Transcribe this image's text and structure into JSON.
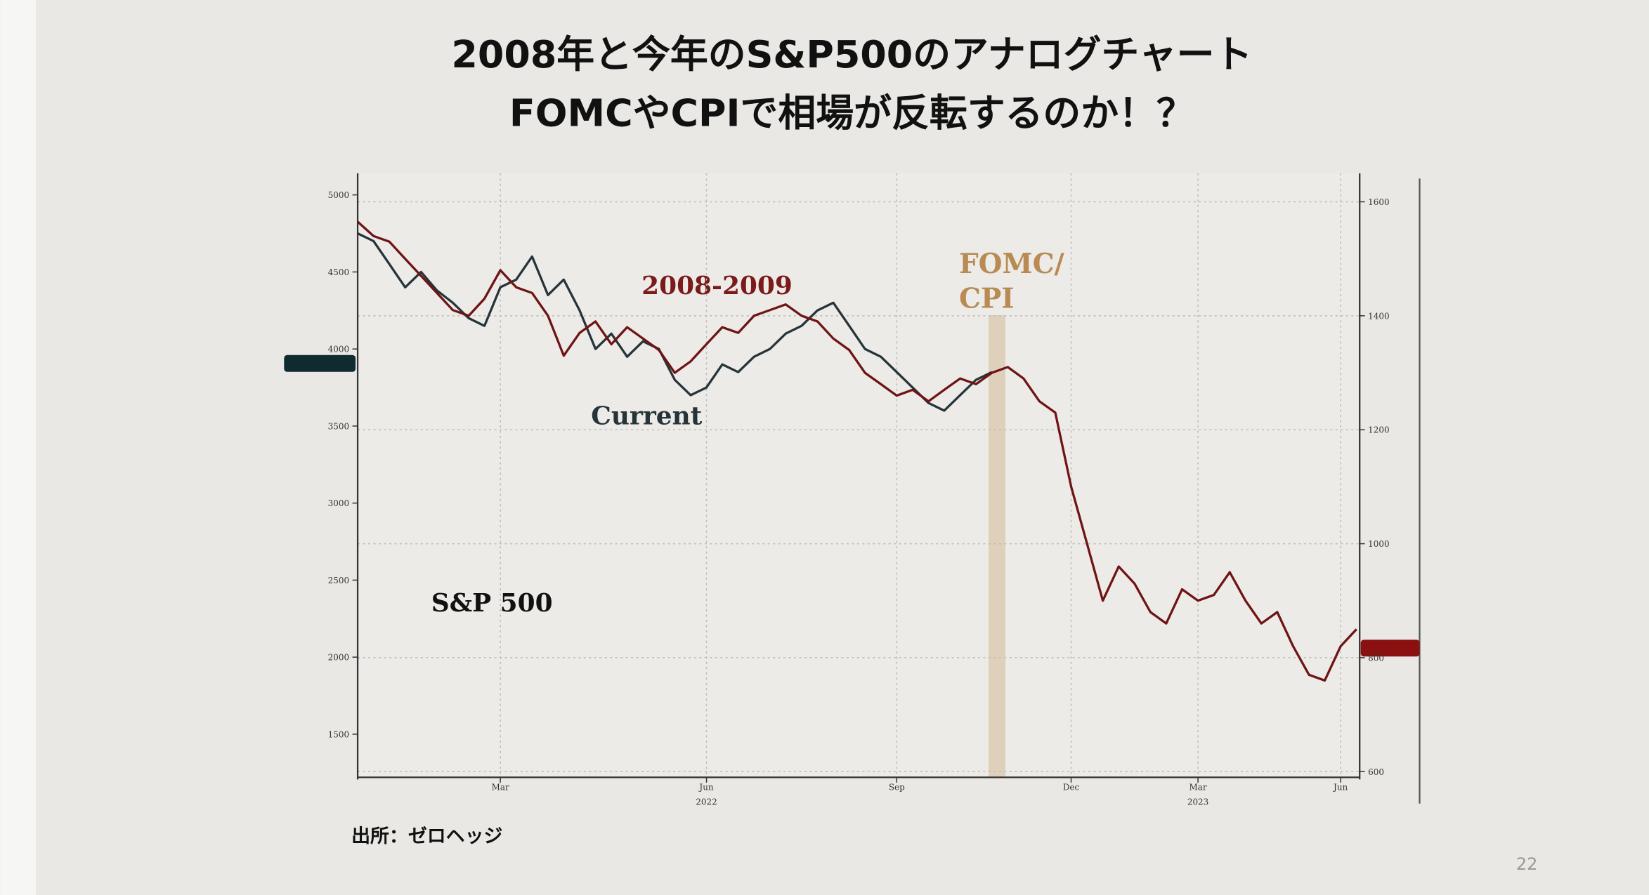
{
  "title_lines": [
    "2008年と今年のS&P500のアナログチャート",
    "FOMCやCPIで相場が反転するのか！？"
  ],
  "chart_data": {
    "type": "line",
    "annotations": [
      "2008-2009",
      "Current",
      "S&P 500",
      "FOMC/",
      "CPI"
    ],
    "categories": [
      null,
      null,
      null,
      null,
      null,
      null,
      null,
      null,
      null,
      "Mar",
      null,
      null,
      null,
      null,
      null,
      null,
      null,
      null,
      null,
      null,
      null,
      null,
      "Jun",
      null,
      null,
      null,
      null,
      null,
      null,
      null,
      null,
      null,
      null,
      null,
      "Sep",
      null,
      null,
      null,
      null,
      null,
      null,
      null,
      null,
      null,
      null,
      "Dec",
      null,
      null,
      null,
      null,
      null,
      null,
      null,
      "Mar",
      null,
      null,
      null,
      null,
      null,
      null,
      null,
      null,
      "Jun",
      null
    ],
    "category_years": [
      null,
      null,
      null,
      null,
      null,
      null,
      null,
      null,
      null,
      null,
      null,
      null,
      null,
      null,
      null,
      null,
      null,
      null,
      null,
      null,
      null,
      null,
      "2022",
      null,
      null,
      null,
      null,
      null,
      null,
      null,
      null,
      null,
      null,
      null,
      null,
      null,
      null,
      null,
      null,
      null,
      null,
      null,
      null,
      null,
      null,
      null,
      null,
      null,
      null,
      null,
      null,
      null,
      null,
      "2023",
      null,
      null,
      null,
      null,
      null,
      null,
      null,
      null,
      null,
      null
    ],
    "series": [
      {
        "name": "Current",
        "color": "#26343a",
        "values": [
          4750,
          4700,
          4550,
          4400,
          4500,
          4380,
          4300,
          4200,
          4150,
          4400,
          4450,
          4600,
          4350,
          4450,
          4250,
          4000,
          4100,
          3950,
          4050,
          4000,
          3800,
          3700,
          3750,
          3900,
          3850,
          3950,
          4000,
          4100,
          4150,
          4250,
          4300,
          4150,
          4000,
          3950,
          3850,
          3750,
          3650,
          3600,
          3700,
          3800,
          3850,
          null,
          null,
          null,
          null,
          null,
          null,
          null,
          null,
          null,
          null,
          null,
          null,
          null,
          null,
          null,
          null,
          null,
          null,
          null,
          null,
          null,
          null,
          null
        ]
      },
      {
        "name": "2008-2009",
        "color": "#6e1414",
        "axis": "y2",
        "values": [
          1565,
          1540,
          1530,
          1500,
          1470,
          1440,
          1410,
          1400,
          1430,
          1480,
          1450,
          1440,
          1400,
          1330,
          1370,
          1390,
          1350,
          1380,
          1360,
          1340,
          1300,
          1320,
          1350,
          1380,
          1370,
          1400,
          1410,
          1420,
          1400,
          1390,
          1360,
          1340,
          1300,
          1280,
          1260,
          1270,
          1250,
          1270,
          1290,
          1280,
          1300,
          1310,
          1290,
          1250,
          1230,
          1100,
          1000,
          900,
          960,
          930,
          880,
          860,
          920,
          900,
          910,
          950,
          900,
          860,
          880,
          820,
          770,
          760,
          820,
          850
        ]
      }
    ],
    "ylim": [
      1220,
      5140
    ],
    "yticks": [
      1500,
      2000,
      2500,
      3000,
      3500,
      4000,
      4500,
      5000
    ],
    "y2lim": [
      590,
      1650
    ],
    "y2ticks": [
      600,
      800,
      1000,
      1200,
      1400,
      1600
    ],
    "grid": true
  },
  "source": "出所：ゼロヘッジ",
  "page_number": "22"
}
